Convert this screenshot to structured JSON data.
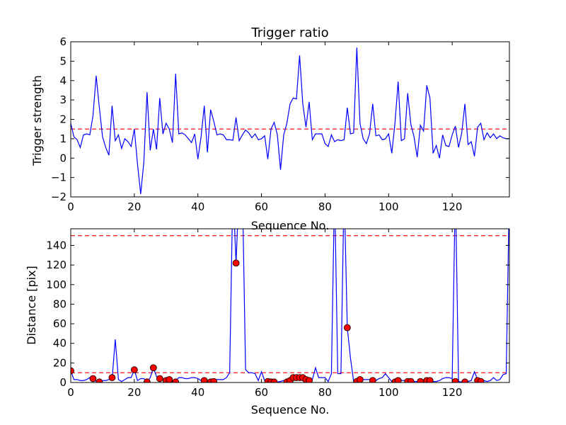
{
  "chart_data": [
    {
      "type": "line",
      "title": "Trigger ratio",
      "xlabel": "Sequence No.",
      "ylabel": "Trigger strength",
      "xlim": [
        0,
        138
      ],
      "ylim": [
        -2,
        6
      ],
      "xticks": [
        0,
        20,
        40,
        60,
        80,
        100,
        120
      ],
      "yticks": [
        -2,
        -1,
        0,
        1,
        2,
        3,
        4,
        5,
        6
      ],
      "grid": false,
      "threshold": 1.5,
      "colors": {
        "line": "#0000ff",
        "threshold": "#ff0000"
      },
      "series": [
        {
          "x": [
            0,
            1,
            2,
            3,
            4,
            5,
            6,
            7,
            8,
            9,
            10,
            11,
            12,
            13,
            14,
            15,
            16,
            17,
            18,
            19,
            20,
            21,
            22,
            23,
            24,
            25,
            26,
            27,
            28,
            29,
            30,
            31,
            32,
            33,
            34,
            35,
            36,
            37,
            38,
            39,
            40,
            41,
            42,
            43,
            44,
            45,
            46,
            47,
            48,
            49,
            50,
            51,
            52,
            53,
            54,
            55,
            56,
            57,
            58,
            59,
            60,
            61,
            62,
            63,
            64,
            65,
            66,
            67,
            68,
            69,
            70,
            71,
            72,
            73,
            74,
            75,
            76,
            77,
            78,
            79,
            80,
            81,
            82,
            83,
            84,
            85,
            86,
            87,
            88,
            89,
            90,
            91,
            92,
            93,
            94,
            95,
            96,
            97,
            98,
            99,
            100,
            101,
            102,
            103,
            104,
            105,
            106,
            107,
            108,
            109,
            110,
            111,
            112,
            113,
            114,
            115,
            116,
            117,
            118,
            119,
            120,
            121,
            122,
            123,
            124,
            125,
            126,
            127,
            128,
            129,
            130,
            131,
            132,
            133,
            134,
            135,
            136,
            137,
            138
          ],
          "y": [
            1.8,
            1.1,
            0.95,
            0.55,
            1.2,
            1.25,
            1.2,
            2.2,
            4.25,
            2.6,
            1.1,
            0.55,
            0.15,
            2.7,
            0.9,
            1.2,
            0.5,
            1.0,
            0.85,
            0.6,
            1.5,
            -0.3,
            -1.85,
            -0.2,
            3.4,
            0.4,
            1.5,
            0.45,
            3.1,
            1.25,
            1.8,
            1.5,
            0.8,
            4.35,
            1.25,
            1.3,
            1.2,
            1.0,
            0.8,
            1.25,
            -0.05,
            1.1,
            2.7,
            0.3,
            2.5,
            1.9,
            1.2,
            1.25,
            1.2,
            0.95,
            0.95,
            0.92,
            2.1,
            0.9,
            1.2,
            1.45,
            1.3,
            1.05,
            1.25,
            0.95,
            1.0,
            1.15,
            -0.05,
            1.5,
            1.85,
            1.2,
            -0.6,
            1.2,
            1.8,
            2.8,
            3.1,
            3.05,
            5.3,
            2.8,
            1.6,
            2.9,
            0.95,
            1.25,
            1.25,
            1.25,
            0.75,
            0.6,
            1.2,
            0.85,
            0.95,
            0.9,
            0.95,
            2.6,
            1.25,
            1.3,
            5.7,
            1.8,
            1.0,
            0.75,
            1.25,
            2.8,
            1.15,
            1.2,
            0.95,
            1.0,
            1.25,
            0.25,
            1.8,
            3.95,
            0.9,
            1.0,
            3.35,
            1.75,
            1.1,
            0.05,
            1.7,
            1.4,
            3.75,
            3.1,
            0.25,
            0.65,
            0.0,
            1.2,
            0.65,
            0.6,
            1.2,
            1.65,
            0.55,
            1.3,
            2.8,
            0.7,
            0.85,
            0.1,
            1.6,
            1.8,
            0.95,
            1.3,
            1.05,
            1.25,
            1.0,
            1.15,
            1.05,
            1.0,
            1.0
          ]
        }
      ]
    },
    {
      "type": "line",
      "title": "",
      "xlabel": "Sequence No.",
      "ylabel": "Distance [pix]",
      "xlim": [
        0,
        138
      ],
      "ylim": [
        0,
        157
      ],
      "xticks": [
        0,
        20,
        40,
        60,
        80,
        100,
        120
      ],
      "yticks": [
        0,
        20,
        40,
        60,
        80,
        100,
        120,
        140
      ],
      "grid": false,
      "thresholds": [
        10,
        150
      ],
      "colors": {
        "line": "#0000ff",
        "threshold": "#ff0000",
        "marker": "#ff0000"
      },
      "series": [
        {
          "x": [
            0,
            1,
            2,
            3,
            4,
            5,
            6,
            7,
            8,
            9,
            10,
            11,
            12,
            13,
            14,
            15,
            16,
            17,
            18,
            19,
            20,
            21,
            22,
            23,
            24,
            25,
            26,
            27,
            28,
            29,
            30,
            31,
            32,
            33,
            34,
            35,
            36,
            37,
            38,
            39,
            40,
            41,
            42,
            43,
            44,
            45,
            46,
            47,
            48,
            49,
            50,
            51,
            52,
            53,
            54,
            55,
            56,
            57,
            58,
            59,
            60,
            61,
            62,
            63,
            64,
            65,
            66,
            67,
            68,
            69,
            70,
            71,
            72,
            73,
            74,
            75,
            76,
            77,
            78,
            79,
            80,
            81,
            82,
            83,
            84,
            85,
            86,
            87,
            88,
            89,
            90,
            91,
            92,
            93,
            94,
            95,
            96,
            97,
            98,
            99,
            100,
            101,
            102,
            103,
            104,
            105,
            106,
            107,
            108,
            109,
            110,
            111,
            112,
            113,
            114,
            115,
            116,
            117,
            118,
            119,
            120,
            121,
            122,
            123,
            124,
            125,
            126,
            127,
            128,
            129,
            130,
            131,
            132,
            133,
            134,
            135,
            136,
            137,
            138
          ],
          "y": [
            12,
            3,
            3,
            2,
            2,
            3,
            5,
            4,
            1,
            1,
            2,
            2,
            3,
            3,
            44,
            3,
            1,
            3,
            5,
            5,
            13,
            2,
            4,
            4,
            0.5,
            5,
            15,
            6,
            4,
            3,
            3,
            3,
            1,
            2,
            5,
            5,
            4,
            4,
            5,
            5,
            4,
            2,
            2,
            1,
            1,
            1,
            3,
            3,
            3,
            5,
            10,
            200,
            122,
            200,
            200,
            13,
            10,
            10,
            9,
            2,
            11,
            2,
            1,
            1,
            0.5,
            0.5,
            1,
            2,
            1,
            2,
            5,
            5,
            5,
            5,
            2,
            3,
            3,
            15,
            5,
            5,
            5,
            1,
            9,
            200,
            9,
            9,
            200,
            56,
            25,
            1,
            2,
            3,
            3,
            3,
            3,
            2,
            2,
            4,
            5,
            9,
            5,
            1,
            1,
            2,
            2,
            2,
            1,
            1,
            1,
            1,
            2,
            2,
            2,
            3,
            1,
            1,
            2,
            4,
            5,
            5,
            4,
            200,
            1,
            0.5,
            1,
            1,
            2,
            11,
            3,
            2,
            2,
            1,
            2,
            5,
            2,
            3,
            8,
            9,
            200
          ]
        },
        {
          "name": "",
          "type": "scatter",
          "points": [
            [
              0,
              12
            ],
            [
              7,
              4
            ],
            [
              9,
              0.5
            ],
            [
              13,
              5
            ],
            [
              20,
              13
            ],
            [
              24,
              0.5
            ],
            [
              26,
              15
            ],
            [
              28,
              4
            ],
            [
              30,
              2
            ],
            [
              31,
              3
            ],
            [
              33,
              0.5
            ],
            [
              42,
              2
            ],
            [
              44,
              0.5
            ],
            [
              45,
              1
            ],
            [
              52,
              122
            ],
            [
              62,
              1
            ],
            [
              63,
              0.5
            ],
            [
              64,
              0.5
            ],
            [
              68,
              0.5
            ],
            [
              69,
              2
            ],
            [
              70,
              5
            ],
            [
              71,
              5
            ],
            [
              72,
              5
            ],
            [
              73,
              5
            ],
            [
              74,
              3
            ],
            [
              75,
              2
            ],
            [
              87,
              56
            ],
            [
              90,
              1
            ],
            [
              91,
              3
            ],
            [
              95,
              2
            ],
            [
              102,
              0.5
            ],
            [
              103,
              2
            ],
            [
              106,
              1
            ],
            [
              107,
              1
            ],
            [
              110,
              1
            ],
            [
              112,
              2
            ],
            [
              113,
              2
            ],
            [
              121,
              1
            ],
            [
              124,
              0.5
            ],
            [
              128,
              2
            ],
            [
              129,
              1
            ]
          ]
        }
      ]
    }
  ]
}
